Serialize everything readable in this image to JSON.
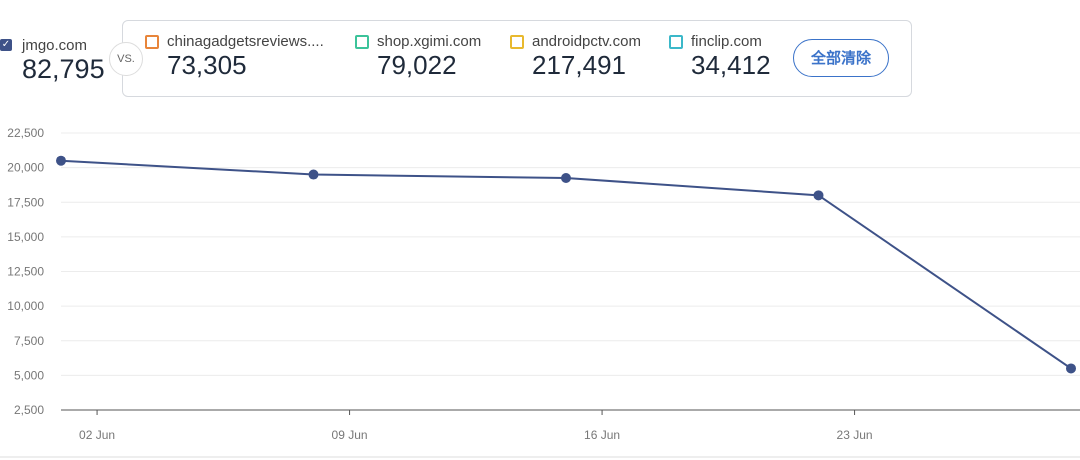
{
  "main_site": {
    "name": "jmgo.com",
    "value": "82,795",
    "checked": true,
    "color": "#3e5288"
  },
  "vs_label": "VS.",
  "competitors": [
    {
      "name": "chinagadgetsreviews....",
      "value": "73,305",
      "color": "#e8853a"
    },
    {
      "name": "shop.xgimi.com",
      "value": "79,022",
      "color": "#3cc39a"
    },
    {
      "name": "androidpctv.com",
      "value": "217,491",
      "color": "#e8b92e"
    },
    {
      "name": "finclip.com",
      "value": "34,412",
      "color": "#3bb8c9"
    }
  ],
  "clear_button": "全部清除",
  "chart_data": {
    "type": "line",
    "x": [
      "2023-06-01",
      "2023-06-08",
      "2023-06-15",
      "2023-06-22",
      "2023-06-29"
    ],
    "series": [
      {
        "values": [
          20500,
          19500,
          19250,
          18000,
          5500
        ],
        "color": "#3e5288"
      }
    ],
    "xticks": [
      "02 Jun",
      "09 Jun",
      "16 Jun",
      "23 Jun"
    ],
    "yticks": [
      "22,500",
      "20,000",
      "17,500",
      "15,000",
      "12,500",
      "10,000",
      "7,500",
      "5,000",
      "2,500"
    ],
    "ylim": [
      2500,
      22500
    ],
    "grid": true
  }
}
